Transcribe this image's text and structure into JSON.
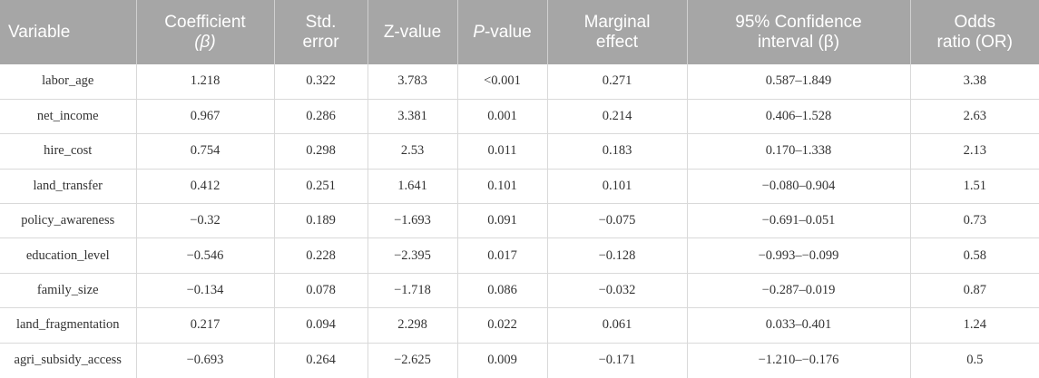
{
  "table": {
    "headers": [
      {
        "line1": "Variable",
        "line2": ""
      },
      {
        "line1": "Coefficient",
        "line2": "(β)"
      },
      {
        "line1": "Std.",
        "line2": "error"
      },
      {
        "line1": "Z-value",
        "line2": ""
      },
      {
        "line1": "P-value",
        "line2": ""
      },
      {
        "line1": "Marginal",
        "line2": "effect"
      },
      {
        "line1": "95% Confidence",
        "line2": "interval (β)"
      },
      {
        "line1": "Odds",
        "line2": "ratio (OR)"
      }
    ],
    "rows": [
      [
        "labor_age",
        "1.218",
        "0.322",
        "3.783",
        "<0.001",
        "0.271",
        "0.587–1.849",
        "3.38"
      ],
      [
        "net_income",
        "0.967",
        "0.286",
        "3.381",
        "0.001",
        "0.214",
        "0.406–1.528",
        "2.63"
      ],
      [
        "hire_cost",
        "0.754",
        "0.298",
        "2.53",
        "0.011",
        "0.183",
        "0.170–1.338",
        "2.13"
      ],
      [
        "land_transfer",
        "0.412",
        "0.251",
        "1.641",
        "0.101",
        "0.101",
        "−0.080–0.904",
        "1.51"
      ],
      [
        "policy_awareness",
        "−0.32",
        "0.189",
        "−1.693",
        "0.091",
        "−0.075",
        "−0.691–0.051",
        "0.73"
      ],
      [
        "education_level",
        "−0.546",
        "0.228",
        "−2.395",
        "0.017",
        "−0.128",
        "−0.993–−0.099",
        "0.58"
      ],
      [
        "family_size",
        "−0.134",
        "0.078",
        "−1.718",
        "0.086",
        "−0.032",
        "−0.287–0.019",
        "0.87"
      ],
      [
        "land_fragmentation",
        "0.217",
        "0.094",
        "2.298",
        "0.022",
        "0.061",
        "0.033–0.401",
        "1.24"
      ],
      [
        "agri_subsidy_access",
        "−0.693",
        "0.264",
        "−2.625",
        "0.009",
        "−0.171",
        "−1.210–−0.176",
        "0.5"
      ]
    ]
  }
}
